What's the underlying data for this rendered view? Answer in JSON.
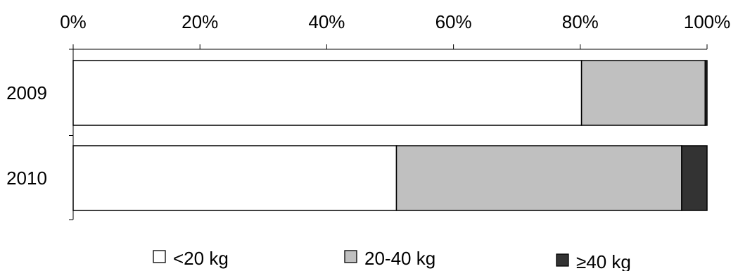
{
  "chart_data": {
    "type": "bar",
    "orientation": "horizontal",
    "stacked": "percent",
    "categories": [
      "2009",
      "2010"
    ],
    "series": [
      {
        "name": "<20 kg",
        "values": [
          80.2,
          51.0
        ],
        "color": "#ffffff"
      },
      {
        "name": "20-40 kg",
        "values": [
          19.5,
          45.0
        ],
        "color": "#c0c0c0"
      },
      {
        "name": "≥40 kg",
        "values": [
          0.3,
          4.0
        ],
        "color": "#333333"
      }
    ],
    "xaxis": {
      "position": "top",
      "ticks": [
        0,
        20,
        40,
        60,
        80,
        100
      ],
      "tick_labels": [
        "0%",
        "20%",
        "40%",
        "60%",
        "80%",
        "100%"
      ],
      "range": [
        0,
        100
      ]
    },
    "grid": false,
    "legend_position": "bottom"
  }
}
